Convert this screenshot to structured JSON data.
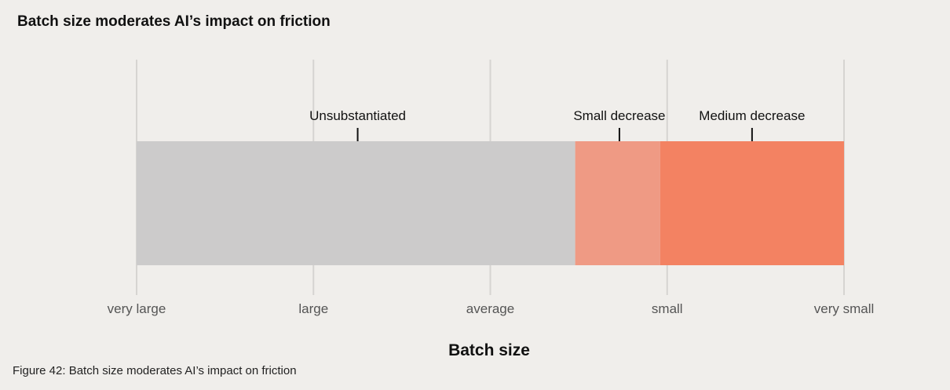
{
  "chart_data": {
    "type": "bar",
    "orientation": "horizontal-segmented",
    "title": "Batch size moderates AI’s impact on friction",
    "xlabel": "Batch size",
    "ylabel": "",
    "x_ticks": [
      "very large",
      "large",
      "average",
      "small",
      "very small"
    ],
    "x_range": [
      0,
      4
    ],
    "segments": [
      {
        "label": "Unsubstantiated",
        "start": 0,
        "end": 2.48,
        "label_at": 1.25,
        "color": "#cccbcb"
      },
      {
        "label": "Small decrease",
        "start": 2.48,
        "end": 2.96,
        "label_at": 2.73,
        "color": "#ef9a84"
      },
      {
        "label": "Medium decrease",
        "start": 2.96,
        "end": 4,
        "label_at": 3.48,
        "color": "#f38262"
      }
    ],
    "grid": true
  },
  "caption": "Figure 42: Batch size moderates AI’s impact on friction",
  "colors": {
    "background": "#f0eeeb",
    "gridline": "#d6d4d1",
    "text": "#111111",
    "tick_text": "#555555"
  }
}
